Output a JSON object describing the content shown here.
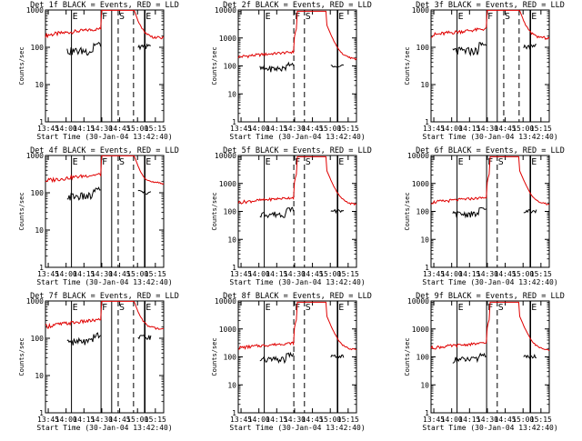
{
  "figure": {
    "xlabel_prefix": "Start Time",
    "start_time_label": "(30-Jan-04 13:42:40)",
    "ylabel": "Counts/sec",
    "legend_text": "BLACK = Events, RED = LLD",
    "colors": {
      "events": "#000000",
      "lld": "#e00000",
      "frame": "#000000",
      "background": "#ffffff"
    }
  },
  "chart_data": [
    {
      "type": "line",
      "title": "Det 1f BLACK = Events, RED = LLD",
      "xlabel": "Start Time (30-Jan-04 13:42:40)",
      "ylabel": "Counts/sec",
      "x_tick_labels": [
        "13:45",
        "14:00",
        "14:15",
        "14:30",
        "14:45",
        "15:00",
        "15:15"
      ],
      "y_tick_labels": [
        "1",
        "10",
        "100",
        "1000"
      ],
      "y_scale": "log",
      "ylim": [
        1,
        1000
      ],
      "markers": [
        {
          "label": "E",
          "kind": "solid"
        },
        {
          "label": "F",
          "kind": "solid"
        },
        {
          "label": "",
          "kind": "solid"
        },
        {
          "label": "S",
          "kind": "dashed"
        },
        {
          "label": "",
          "kind": "dashed"
        },
        {
          "label": "E",
          "kind": "solid"
        }
      ],
      "series": [
        {
          "name": "Events",
          "color": "#000000"
        },
        {
          "name": "LLD",
          "color": "#e00000"
        }
      ]
    },
    {
      "type": "line",
      "title": "Det 2f BLACK = Events, RED = LLD",
      "xlabel": "Start Time (30-Jan-04 13:42:40)",
      "ylabel": "Counts/sec",
      "x_tick_labels": [
        "13:45",
        "14:00",
        "14:15",
        "14:30",
        "14:45",
        "15:00",
        "15:15"
      ],
      "y_tick_labels": [
        "1",
        "10",
        "100",
        "1000",
        "10000"
      ],
      "y_scale": "log",
      "ylim": [
        1,
        10000
      ],
      "markers": [
        {
          "label": "E",
          "kind": "solid"
        },
        {
          "label": "F",
          "kind": "dashed"
        },
        {
          "label": "S",
          "kind": "dashed"
        },
        {
          "label": "E",
          "kind": "solid"
        }
      ],
      "series": [
        {
          "name": "Events",
          "color": "#000000"
        },
        {
          "name": "LLD",
          "color": "#e00000"
        }
      ]
    },
    {
      "type": "line",
      "title": "Det 3f BLACK = Events, RED = LLD",
      "xlabel": "Start Time (30-Jan-04 13:42:40)",
      "ylabel": "Counts/sec",
      "x_tick_labels": [
        "13:45",
        "14:00",
        "14:15",
        "14:30",
        "14:45",
        "15:00",
        "15:15"
      ],
      "y_tick_labels": [
        "1",
        "10",
        "100",
        "1000"
      ],
      "y_scale": "log",
      "ylim": [
        1,
        1000
      ],
      "markers": [
        {
          "label": "E",
          "kind": "solid"
        },
        {
          "label": "F",
          "kind": "solid"
        },
        {
          "label": "",
          "kind": "solid"
        },
        {
          "label": "S",
          "kind": "dashed"
        },
        {
          "label": "",
          "kind": "dashed"
        },
        {
          "label": "E",
          "kind": "solid"
        }
      ],
      "series": [
        {
          "name": "Events",
          "color": "#000000"
        },
        {
          "name": "LLD",
          "color": "#e00000"
        }
      ]
    },
    {
      "type": "line",
      "title": "Det 4f BLACK = Events, RED = LLD",
      "xlabel": "Start Time (30-Jan-04 13:42:40)",
      "ylabel": "Counts/sec",
      "x_tick_labels": [
        "13:45",
        "14:00",
        "14:15",
        "14:30",
        "14:45",
        "15:00",
        "15:15"
      ],
      "y_tick_labels": [
        "1",
        "10",
        "100",
        "1000"
      ],
      "y_scale": "log",
      "ylim": [
        1,
        1000
      ],
      "markers": [
        {
          "label": "E",
          "kind": "solid"
        },
        {
          "label": "F",
          "kind": "solid"
        },
        {
          "label": "",
          "kind": "solid"
        },
        {
          "label": "S",
          "kind": "dashed"
        },
        {
          "label": "",
          "kind": "dashed"
        },
        {
          "label": "E",
          "kind": "solid"
        }
      ],
      "series": [
        {
          "name": "Events",
          "color": "#000000"
        },
        {
          "name": "LLD",
          "color": "#e00000"
        }
      ]
    },
    {
      "type": "line",
      "title": "Det 5f BLACK = Events, RED = LLD",
      "xlabel": "Start Time (30-Jan-04 13:42:40)",
      "ylabel": "Counts/sec",
      "x_tick_labels": [
        "13:45",
        "14:00",
        "14:15",
        "14:30",
        "14:45",
        "15:00",
        "15:15"
      ],
      "y_tick_labels": [
        "1",
        "10",
        "100",
        "1000",
        "10000"
      ],
      "y_scale": "log",
      "ylim": [
        1,
        10000
      ],
      "markers": [
        {
          "label": "E",
          "kind": "solid"
        },
        {
          "label": "F",
          "kind": "dashed"
        },
        {
          "label": "S",
          "kind": "dashed"
        },
        {
          "label": "E",
          "kind": "solid"
        }
      ],
      "series": [
        {
          "name": "Events",
          "color": "#000000"
        },
        {
          "name": "LLD",
          "color": "#e00000"
        }
      ]
    },
    {
      "type": "line",
      "title": "Det 6f BLACK = Events, RED = LLD",
      "xlabel": "Start Time (30-Jan-04 13:42:40)",
      "ylabel": "Counts/sec",
      "x_tick_labels": [
        "13:45",
        "14:00",
        "14:15",
        "14:30",
        "14:45",
        "15:00",
        "15:15"
      ],
      "y_tick_labels": [
        "1",
        "10",
        "100",
        "1000",
        "10000"
      ],
      "y_scale": "log",
      "ylim": [
        1,
        10000
      ],
      "markers": [
        {
          "label": "E",
          "kind": "solid"
        },
        {
          "label": "F",
          "kind": "solid"
        },
        {
          "label": "S",
          "kind": "dashed"
        },
        {
          "label": "E",
          "kind": "solid"
        }
      ],
      "series": [
        {
          "name": "Events",
          "color": "#000000"
        },
        {
          "name": "LLD",
          "color": "#e00000"
        }
      ]
    },
    {
      "type": "line",
      "title": "Det 7f BLACK = Events, RED = LLD",
      "xlabel": "Start Time (30-Jan-04 13:42:40)",
      "ylabel": "Counts/sec",
      "x_tick_labels": [
        "13:45",
        "14:00",
        "14:15",
        "14:30",
        "14:45",
        "15:00",
        "15:15"
      ],
      "y_tick_labels": [
        "1",
        "10",
        "100",
        "1000"
      ],
      "y_scale": "log",
      "ylim": [
        1,
        1000
      ],
      "markers": [
        {
          "label": "E",
          "kind": "solid"
        },
        {
          "label": "F",
          "kind": "solid"
        },
        {
          "label": "",
          "kind": "solid"
        },
        {
          "label": "S",
          "kind": "dashed"
        },
        {
          "label": "",
          "kind": "dashed"
        },
        {
          "label": "E",
          "kind": "solid"
        }
      ],
      "series": [
        {
          "name": "Events",
          "color": "#000000"
        },
        {
          "name": "LLD",
          "color": "#e00000"
        }
      ]
    },
    {
      "type": "line",
      "title": "Det 8f BLACK = Events, RED = LLD",
      "xlabel": "Start Time (30-Jan-04 13:42:40)",
      "ylabel": "Counts/sec",
      "x_tick_labels": [
        "13:45",
        "14:00",
        "14:15",
        "14:30",
        "14:45",
        "15:00",
        "15:15"
      ],
      "y_tick_labels": [
        "1",
        "10",
        "100",
        "1000",
        "10000"
      ],
      "y_scale": "log",
      "ylim": [
        1,
        10000
      ],
      "markers": [
        {
          "label": "E",
          "kind": "solid"
        },
        {
          "label": "F",
          "kind": "dashed"
        },
        {
          "label": "S",
          "kind": "dashed"
        },
        {
          "label": "E",
          "kind": "solid"
        }
      ],
      "series": [
        {
          "name": "Events",
          "color": "#000000"
        },
        {
          "name": "LLD",
          "color": "#e00000"
        }
      ]
    },
    {
      "type": "line",
      "title": "Det 9f BLACK = Events, RED = LLD",
      "xlabel": "Start Time (30-Jan-04 13:42:40)",
      "ylabel": "Counts/sec",
      "x_tick_labels": [
        "13:45",
        "14:00",
        "14:15",
        "14:30",
        "14:45",
        "15:00",
        "15:15"
      ],
      "y_tick_labels": [
        "1",
        "10",
        "100",
        "1000",
        "10000"
      ],
      "y_scale": "log",
      "ylim": [
        1,
        10000
      ],
      "markers": [
        {
          "label": "E",
          "kind": "solid"
        },
        {
          "label": "F",
          "kind": "solid"
        },
        {
          "label": "S",
          "kind": "dashed"
        },
        {
          "label": "E",
          "kind": "solid"
        }
      ],
      "series": [
        {
          "name": "Events",
          "color": "#000000"
        },
        {
          "name": "LLD",
          "color": "#e00000"
        }
      ]
    }
  ]
}
